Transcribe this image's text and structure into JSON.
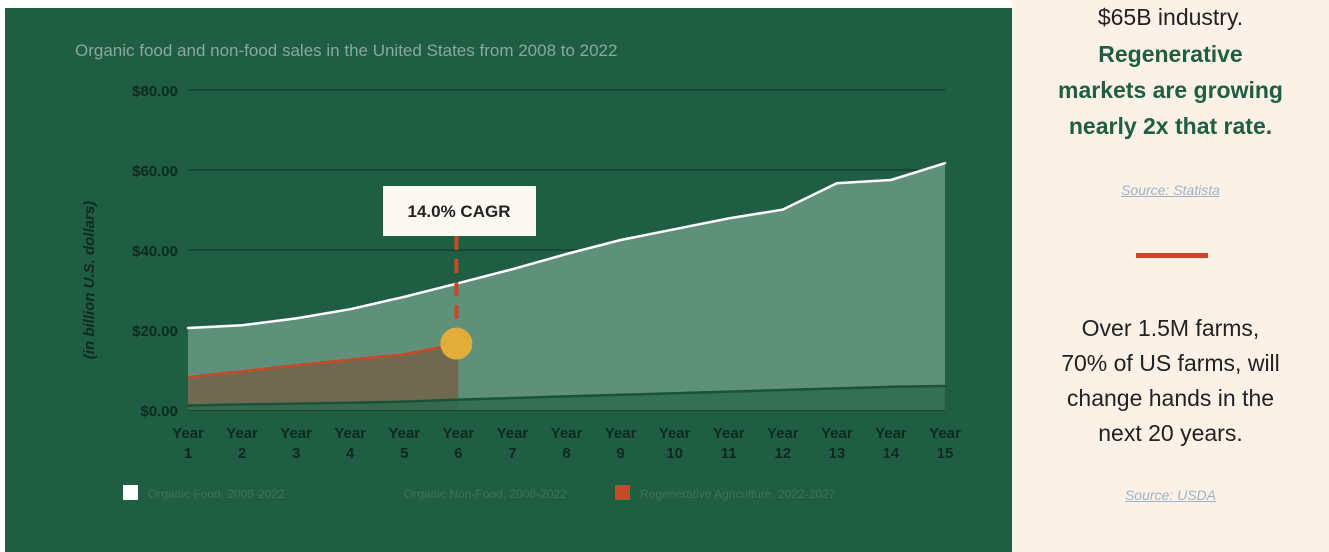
{
  "chart": {
    "title": "Organic food and non-food sales in the United States from 2008 to 2022",
    "ylabel": "(in billion U.S. dollars)",
    "annotation": "14.0% CAGR",
    "legend": [
      {
        "label": "Organic Food, 2008-2022",
        "color": "#ffffff"
      },
      {
        "label": "Organic Non-Food, 2008-2022",
        "color": "#1f5e43"
      },
      {
        "label": "Regenerative Agriculture, 2022-2027",
        "color": "#c8482a"
      }
    ]
  },
  "chart_data": {
    "type": "area",
    "x": [
      "Year 1",
      "Year 2",
      "Year 3",
      "Year 4",
      "Year 5",
      "Year 6",
      "Year 7",
      "Year 8",
      "Year 9",
      "Year 10",
      "Year 11",
      "Year 12",
      "Year 13",
      "Year 14",
      "Year 15"
    ],
    "ytick_labels": [
      "$0.00",
      "$20.00",
      "$40.00",
      "$60.00",
      "$80.00"
    ],
    "ylim": [
      0,
      80
    ],
    "grid": true,
    "legend_position": "bottom",
    "series": [
      {
        "name": "Organic Food, 2008-2022",
        "values": [
          20.5,
          21.2,
          22.9,
          25.2,
          28.3,
          31.7,
          35.2,
          39.0,
          42.5,
          45.2,
          47.9,
          50.1,
          56.7,
          57.5,
          61.7
        ]
      },
      {
        "name": "Organic Non-Food, 2008-2022",
        "values": [
          1.1,
          1.4,
          1.6,
          1.8,
          2.1,
          2.6,
          3.0,
          3.4,
          3.8,
          4.2,
          4.6,
          5.0,
          5.4,
          5.8,
          6.0
        ]
      },
      {
        "name": "Regenerative Agriculture, 2022-2027",
        "values": [
          8.2,
          9.7,
          11.2,
          12.6,
          13.9,
          16.6,
          null,
          null,
          null,
          null,
          null,
          null,
          null,
          null,
          null
        ]
      }
    ],
    "colors": {
      "background": "#1f5e43",
      "food_area": "#5f917a",
      "food_line": "#ffffff",
      "regen_line": "#c8482a",
      "regen_area": "#6f6a4f",
      "marker": "#e2ad38"
    }
  },
  "right_panel": {
    "industry_text": "$65B industry.",
    "regen_text": "Regenerative markets are growing nearly 2x that rate.",
    "source_statista": "Source: Statista",
    "farms_text": "Over 1.5M farms, 70% of US farms, will change hands in the next 20 years.",
    "source_usda": "Source: USDA"
  }
}
